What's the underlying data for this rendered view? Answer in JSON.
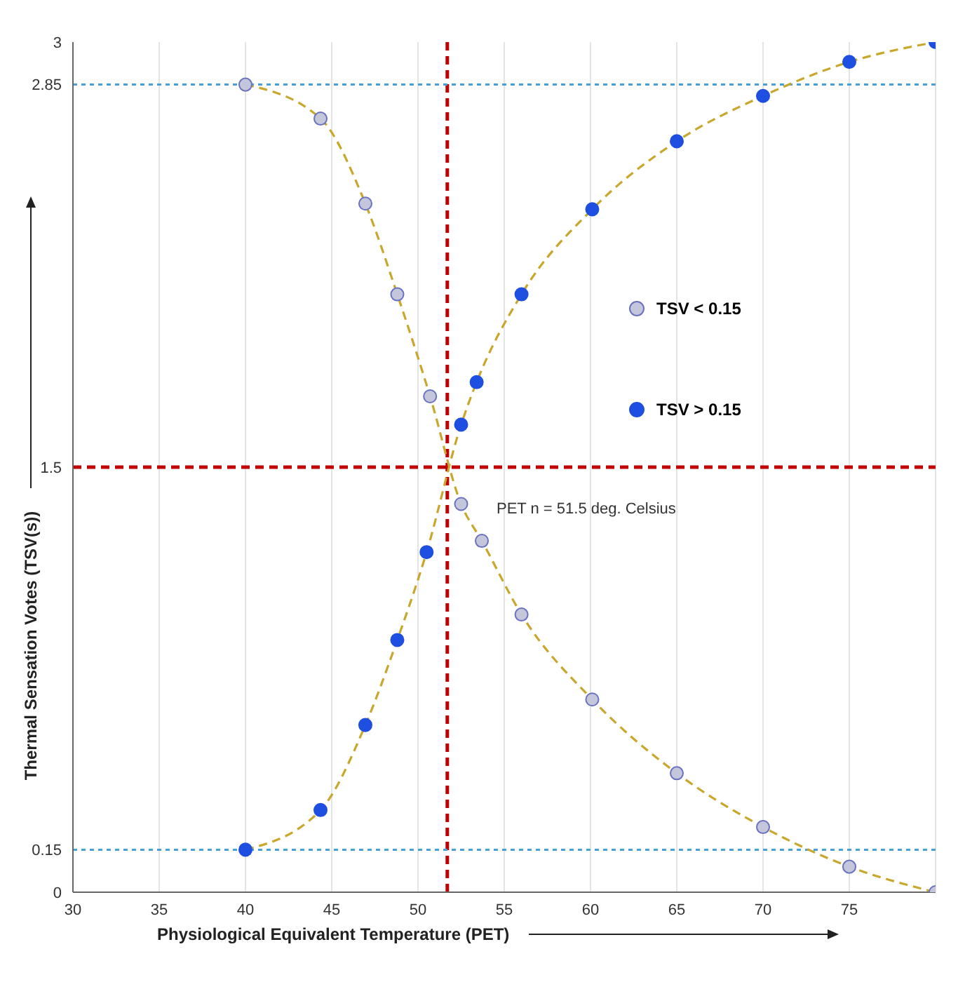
{
  "chart_data": {
    "type": "scatter",
    "xlabel": "Physiological Equivalent Temperature (PET)",
    "ylabel": "Thermal Sensation Votes (TSV(s))",
    "xlim": [
      30,
      80
    ],
    "xticks": [
      30,
      35,
      40,
      45,
      50,
      55,
      60,
      65,
      70,
      75
    ],
    "ylim": [
      0,
      3
    ],
    "yticks": [
      0,
      0.15,
      1.5,
      2.85,
      3
    ],
    "grid": "x",
    "legend": "right",
    "line_style": "dashed",
    "series": [
      {
        "type": "line",
        "marker": "none",
        "color": "#c9a72c",
        "x": [
          40,
          44.35,
          46.95,
          48.8,
          50.7,
          52.5,
          53.7,
          56,
          60.1,
          65,
          70,
          75,
          80
        ],
        "values": [
          2.85,
          2.73,
          2.43,
          2.11,
          1.75,
          1.37,
          1.24,
          0.98,
          0.68,
          0.42,
          0.23,
          0.09,
          0
        ]
      },
      {
        "type": "line",
        "marker": "none",
        "color": "#c9a72c",
        "x": [
          40,
          44.35,
          46.95,
          48.8,
          50.5,
          52.5,
          53.4,
          56,
          60.1,
          65,
          70,
          75,
          80
        ],
        "values": [
          0.15,
          0.29,
          0.59,
          0.89,
          1.2,
          1.65,
          1.8,
          2.11,
          2.41,
          2.65,
          2.81,
          2.93,
          3
        ]
      },
      {
        "marker": "circle",
        "name": "TSV < 0.15",
        "color": "#c4c6dc",
        "x": [
          40,
          44.35,
          46.95,
          48.8,
          50.7,
          52.5,
          53.7,
          56,
          60.1,
          65,
          70,
          75,
          80
        ],
        "values": [
          2.85,
          2.73,
          2.43,
          2.11,
          1.75,
          1.37,
          1.24,
          0.98,
          0.68,
          0.42,
          0.23,
          0.09,
          0
        ]
      },
      {
        "marker": "circle",
        "name": "TSV > 0.15",
        "color": "#1f4fe0",
        "x": [
          40,
          44.35,
          46.95,
          48.8,
          50.5,
          52.5,
          53.4,
          56,
          60.1,
          65,
          70,
          75,
          80
        ],
        "values": [
          0.15,
          0.29,
          0.59,
          0.89,
          1.2,
          1.65,
          1.8,
          2.11,
          2.41,
          2.65,
          2.81,
          2.93,
          3
        ]
      }
    ],
    "ref_lines": [
      {
        "axis": "x",
        "value": 51.7,
        "color": "#c00000",
        "line_style": "dashed"
      },
      {
        "axis": "y",
        "value": 1.5,
        "color": "#c00000",
        "line_style": "dashed"
      },
      {
        "axis": "y",
        "value": 2.85,
        "color": "#4a9fd8",
        "line_style": "dotted"
      },
      {
        "axis": "y",
        "value": 0.15,
        "color": "#4a9fd8",
        "line_style": "dotted"
      }
    ],
    "annotations": [
      "PET n = 51.5 deg. Celsius"
    ]
  }
}
